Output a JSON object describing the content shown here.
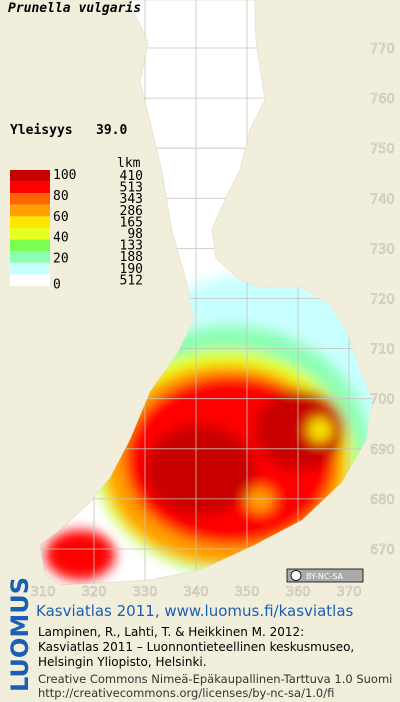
{
  "title": "Prunella vulgaris",
  "frequency": {
    "label": "Yleisyys",
    "value": "39.0"
  },
  "legend": {
    "count_header": "lkm",
    "scale_labels": [
      "100",
      "80",
      "60",
      "40",
      "20",
      "0"
    ],
    "classes": [
      {
        "color": "#c80000",
        "count": "410"
      },
      {
        "color": "#ff0000",
        "count": "513"
      },
      {
        "color": "#ff6400",
        "count": "343"
      },
      {
        "color": "#ffa000",
        "count": "286"
      },
      {
        "color": "#ffe600",
        "count": "165"
      },
      {
        "color": "#e6ff1e",
        "count": "98"
      },
      {
        "color": "#78ff50",
        "count": "133"
      },
      {
        "color": "#8cffb4",
        "count": "188"
      },
      {
        "color": "#c8ffff",
        "count": "190"
      },
      {
        "color": "#ffffff",
        "count": "512"
      }
    ]
  },
  "grid": {
    "y_labels": [
      "770",
      "760",
      "750",
      "740",
      "730",
      "720",
      "710",
      "700",
      "690",
      "680",
      "670"
    ],
    "x_labels": [
      "310",
      "320",
      "330",
      "340",
      "350",
      "360",
      "370"
    ]
  },
  "license_badge": "BY-NC-SA",
  "footer": {
    "logo": "LUOMUS",
    "headline": "Kasviatlas 2011, www.luomus.fi/kasviatlas",
    "citation": [
      "Lampinen, R., Lahti, T. & Heikkinen M. 2012:",
      "Kasviatlas 2011 – Luonnontieteellinen keskusmuseo,",
      "Helsingin Yliopisto, Helsinki."
    ],
    "license": [
      "Creative Commons Nimeä-Epäkaupallinen-Tarttuva 1.0 Suomi",
      "http://creativecommons.org/licenses/by-nc-sa/1.0/fi"
    ]
  }
}
